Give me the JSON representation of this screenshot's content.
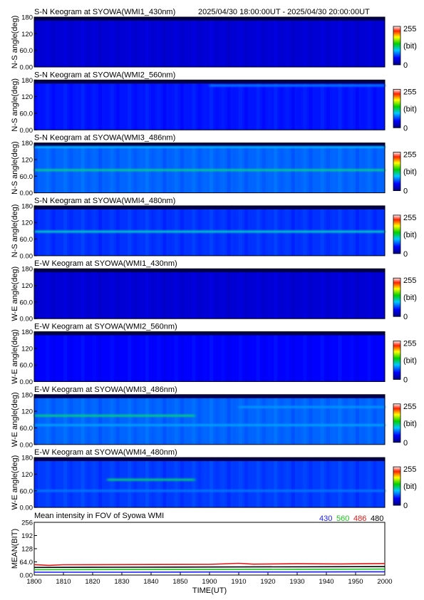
{
  "header": {
    "time_range": "2025/04/30 18:00:00UT - 2025/04/30 20:00:00UT"
  },
  "colors": {
    "430": "#1a1aff",
    "560": "#18c818",
    "486": "#e01818",
    "480": "#000000"
  },
  "colorbar": {
    "max_label": "255",
    "min_label": "0",
    "unit_label": "(bit)"
  },
  "chart_data": [
    {
      "type": "heatmap",
      "title": "S-N Keogram at SYOWA(WMI1_430nm)",
      "ylabel": "N-S angle(deg)",
      "ylim": [
        0,
        180
      ],
      "yticks": [
        "180",
        "120",
        "60.0",
        "0.00"
      ],
      "xlim": [
        "18:00",
        "20:00"
      ],
      "background_level": 0.12,
      "bands": []
    },
    {
      "type": "heatmap",
      "title": "S-N Keogram at SYOWA(WMI2_560nm)",
      "ylabel": "N-S angle(deg)",
      "ylim": [
        0,
        180
      ],
      "yticks": [
        "180",
        "120",
        "60.0",
        "0.00"
      ],
      "xlim": [
        "18:00",
        "20:00"
      ],
      "background_level": 0.2,
      "bands": [
        {
          "angle": 160,
          "start": "19:00",
          "end": "20:00",
          "level": 0.3
        }
      ]
    },
    {
      "type": "heatmap",
      "title": "S-N Keogram at SYOWA(WMI3_486nm)",
      "ylabel": "N-S angle(deg)",
      "ylim": [
        0,
        180
      ],
      "yticks": [
        "180",
        "120",
        "60.0",
        "0.00"
      ],
      "xlim": [
        "18:00",
        "20:00"
      ],
      "background_level": 0.28,
      "bands": [
        {
          "angle": 82,
          "start": "18:00",
          "end": "20:00",
          "level": 0.45
        },
        {
          "angle": 165,
          "start": "18:00",
          "end": "20:00",
          "level": 0.36
        }
      ]
    },
    {
      "type": "heatmap",
      "title": "S-N Keogram at SYOWA(WMI4_480nm)",
      "ylabel": "N-S angle(deg)",
      "ylim": [
        0,
        180
      ],
      "yticks": [
        "180",
        "120",
        "60.0",
        "0.00"
      ],
      "xlim": [
        "18:00",
        "20:00"
      ],
      "background_level": 0.23,
      "bands": [
        {
          "angle": 87,
          "start": "18:00",
          "end": "20:00",
          "level": 0.42
        }
      ]
    },
    {
      "type": "heatmap",
      "title": "E-W Keogram at SYOWA(WMI1_430nm)",
      "ylabel": "W-E angle(deg)",
      "ylim": [
        0,
        180
      ],
      "yticks": [
        "180",
        "120",
        "60.0",
        "0.00"
      ],
      "xlim": [
        "18:00",
        "20:00"
      ],
      "background_level": 0.12,
      "bands": []
    },
    {
      "type": "heatmap",
      "title": "E-W Keogram at SYOWA(WMI2_560nm)",
      "ylabel": "W-E angle(deg)",
      "ylim": [
        0,
        180
      ],
      "yticks": [
        "180",
        "120",
        "60.0",
        "0.00"
      ],
      "xlim": [
        "18:00",
        "20:00"
      ],
      "background_level": 0.18,
      "bands": []
    },
    {
      "type": "heatmap",
      "title": "E-W Keogram at SYOWA(WMI3_486nm)",
      "ylabel": "W-E angle(deg)",
      "ylim": [
        0,
        180
      ],
      "yticks": [
        "180",
        "120",
        "60.0",
        "0.00"
      ],
      "xlim": [
        "18:00",
        "20:00"
      ],
      "background_level": 0.28,
      "bands": [
        {
          "angle": 104,
          "start": "18:00",
          "end": "18:55",
          "level": 0.46
        },
        {
          "angle": 70,
          "start": "18:00",
          "end": "20:00",
          "level": 0.34
        },
        {
          "angle": 135,
          "start": "19:10",
          "end": "20:00",
          "level": 0.33
        }
      ]
    },
    {
      "type": "heatmap",
      "title": "E-W Keogram at SYOWA(WMI4_480nm)",
      "ylabel": "W-E angle(deg)",
      "ylim": [
        0,
        180
      ],
      "yticks": [
        "180",
        "120",
        "60.0",
        "0.00"
      ],
      "xlim": [
        "18:00",
        "20:00"
      ],
      "background_level": 0.24,
      "bands": [
        {
          "angle": 100,
          "start": "18:25",
          "end": "18:55",
          "level": 0.47
        },
        {
          "angle": 60,
          "start": "18:00",
          "end": "20:00",
          "level": 0.3
        }
      ]
    },
    {
      "type": "line",
      "title": "Mean intensity in FOV of Syowa WMI",
      "ylabel": "MEAN(BIT)",
      "xlabel": "TIME(UT)",
      "ylim": [
        0,
        256
      ],
      "yticks": [
        "256",
        "192",
        "128",
        "64.0",
        "0.00"
      ],
      "xlim": [
        1800,
        2000
      ],
      "xticks": [
        "1800",
        "1810",
        "1820",
        "1830",
        "1840",
        "1850",
        "1900",
        "1910",
        "1920",
        "1930",
        "1940",
        "1950",
        "2000"
      ],
      "series": [
        {
          "name": "430",
          "color": "#1a1aff",
          "x": [
            1800,
            1830,
            1900,
            1930,
            2000
          ],
          "y": [
            14,
            14,
            15,
            15,
            16
          ]
        },
        {
          "name": "560",
          "color": "#18c818",
          "x": [
            1800,
            1830,
            1900,
            1930,
            2000
          ],
          "y": [
            26,
            27,
            27,
            28,
            29
          ]
        },
        {
          "name": "486",
          "color": "#e01818",
          "x": [
            1800,
            1805,
            1810,
            1830,
            1900,
            1910,
            1915,
            1930,
            1945,
            2000
          ],
          "y": [
            51,
            47,
            50,
            51,
            52,
            57,
            53,
            55,
            54,
            56
          ]
        },
        {
          "name": "480",
          "color": "#000000",
          "x": [
            1800,
            1830,
            1900,
            1930,
            2000
          ],
          "y": [
            37,
            38,
            39,
            40,
            41
          ]
        }
      ]
    }
  ]
}
